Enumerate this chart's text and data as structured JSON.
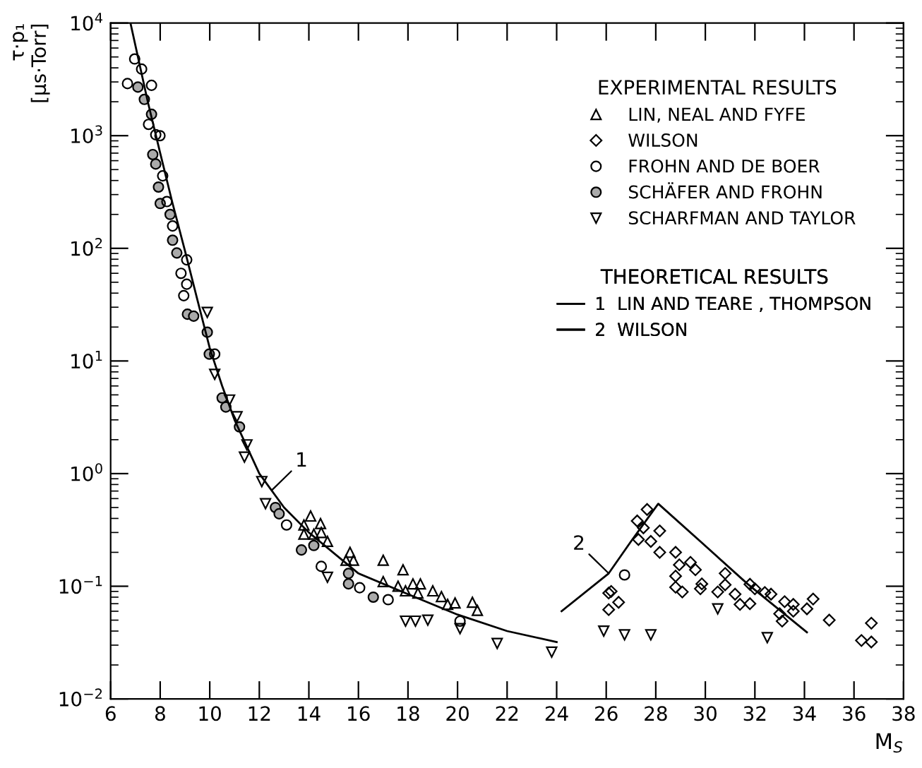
{
  "chart_data": {
    "type": "scatter",
    "xlabel": "M$_{S}$",
    "ylabel": "τ·p₁\n[µs·Torr]",
    "legend_title": "EXPERIMENTAL RESULTS",
    "log": "y",
    "legend": "top right",
    "xlim": [
      6,
      38
    ],
    "xticks": [
      6,
      8,
      10,
      12,
      14,
      16,
      18,
      20,
      22,
      24,
      26,
      28,
      30,
      32,
      34,
      36,
      38
    ],
    "ylim": [
      0.01,
      10000
    ],
    "yticks": [
      {
        "value": 0.01,
        "label": "10$^{−2}$"
      },
      {
        "value": 0.1,
        "label": "10$^{−1}$"
      },
      {
        "value": 1,
        "label": "10$^{0}$"
      },
      {
        "value": 10,
        "label": "10$^{1}$"
      },
      {
        "value": 100,
        "label": "10$^{2}$"
      },
      {
        "value": 1000,
        "label": "10$^{3}$"
      },
      {
        "value": 10000,
        "label": "10$^{4}$"
      }
    ],
    "grid": false,
    "series": [
      {
        "name": "LIN, NEAL AND FYFE",
        "color": "#000000",
        "marker": "triangle",
        "x": [
          14.07,
          14.47,
          13.8,
          14.5,
          14.2,
          14.75,
          15.66,
          15.5,
          15.8,
          17.0,
          17.8,
          17.0,
          17.6,
          18.2,
          18.5,
          17.9,
          18.4,
          19.0,
          19.35,
          19.9,
          20.6,
          20.8,
          19.6,
          13.8
        ],
        "values": [
          0.42,
          0.36,
          0.35,
          0.3,
          0.29,
          0.25,
          0.2,
          0.17,
          0.17,
          0.17,
          0.14,
          0.11,
          0.1,
          0.105,
          0.105,
          0.091,
          0.087,
          0.091,
          0.081,
          0.071,
          0.072,
          0.061,
          0.069,
          0.29
        ]
      },
      {
        "name": "WILSON",
        "color": "#000000",
        "marker": "diamond",
        "x": [
          27.25,
          27.3,
          27.5,
          27.65,
          28.16,
          27.8,
          28.16,
          28.8,
          28.95,
          29.4,
          29.6,
          28.8,
          28.8,
          29.07,
          29.86,
          29.8,
          30.5,
          30.8,
          30.8,
          31.2,
          31.4,
          31.8,
          32.0,
          31.8,
          32.4,
          32.65,
          33.2,
          33.55,
          33.55,
          33.0,
          33.1,
          34.1,
          34.35,
          35.0,
          36.3,
          36.7,
          36.7,
          26.1,
          26.2,
          26.1,
          26.5
        ],
        "values": [
          0.38,
          0.26,
          0.33,
          0.48,
          0.31,
          0.25,
          0.2,
          0.2,
          0.155,
          0.163,
          0.14,
          0.123,
          0.098,
          0.089,
          0.105,
          0.095,
          0.089,
          0.13,
          0.103,
          0.085,
          0.069,
          0.104,
          0.095,
          0.07,
          0.088,
          0.085,
          0.073,
          0.069,
          0.06,
          0.057,
          0.049,
          0.063,
          0.077,
          0.05,
          0.033,
          0.032,
          0.047,
          0.087,
          0.09,
          0.062,
          0.072
        ]
      },
      {
        "name": "FROHN AND DE BOER",
        "color": "#000000",
        "marker": "circle",
        "x": [
          6.97,
          6.68,
          7.25,
          7.65,
          7.53,
          7.82,
          7.99,
          8.1,
          8.27,
          8.5,
          9.07,
          8.84,
          9.07,
          8.95,
          10.2,
          13.1,
          14.5,
          16.05,
          17.2,
          20.1,
          26.74
        ],
        "values": [
          4800,
          2900,
          3900,
          2800,
          1260,
          1020,
          1000,
          440,
          260,
          158,
          79,
          60,
          48,
          38,
          11.5,
          0.35,
          0.15,
          0.097,
          0.076,
          0.049,
          0.126
        ]
      },
      {
        "name": "SCHÄFER AND FROHN",
        "color": "#aaaaaa",
        "marker": "circle",
        "x": [
          7.1,
          7.36,
          7.65,
          7.7,
          7.82,
          7.93,
          8.0,
          8.4,
          8.5,
          8.67,
          9.1,
          9.35,
          9.9,
          9.98,
          10.5,
          10.65,
          11.2,
          12.65,
          12.8,
          13.7,
          14.2,
          15.6,
          16.6,
          15.6
        ],
        "values": [
          2700,
          2100,
          1550,
          680,
          560,
          350,
          250,
          200,
          118,
          91,
          26,
          25,
          18,
          11.5,
          4.7,
          3.9,
          2.6,
          0.5,
          0.44,
          0.21,
          0.23,
          0.105,
          0.08,
          0.13
        ]
      },
      {
        "name": "SCHARFMAN AND TAYLOR",
        "color": "#000000",
        "marker": "triangle_down",
        "x": [
          9.9,
          10.2,
          10.8,
          11.1,
          11.5,
          11.4,
          12.1,
          12.25,
          14.75,
          17.9,
          18.3,
          18.8,
          20.1,
          21.6,
          23.8,
          25.9,
          26.74,
          27.8,
          30.5,
          32.5
        ],
        "values": [
          27,
          7.6,
          4.5,
          3.2,
          1.8,
          1.4,
          0.85,
          0.54,
          0.12,
          0.049,
          0.049,
          0.05,
          0.042,
          0.031,
          0.026,
          0.04,
          0.037,
          0.037,
          0.063,
          0.035
        ]
      },
      {
        "name": "1  LIN AND TEARE , THOMPSON",
        "type": "line",
        "color": "#000000",
        "x": [
          6.8,
          7.5,
          8,
          8.5,
          9,
          9.5,
          10,
          10.5,
          11,
          12,
          13,
          14,
          16,
          18,
          20,
          22,
          24
        ],
        "values": [
          10000,
          2000,
          700,
          250,
          95,
          35,
          13,
          6,
          3,
          1.0,
          0.5,
          0.3,
          0.13,
          0.085,
          0.056,
          0.04,
          0.032
        ]
      },
      {
        "name": "2  WILSON",
        "type": "line",
        "color": "#000000",
        "x": [
          24.2,
          26.1,
          27.0,
          28.1,
          29.8,
          31.7,
          34.1
        ],
        "values": [
          0.06,
          0.13,
          0.25,
          0.54,
          0.25,
          0.105,
          0.039
        ]
      }
    ],
    "annotations": [
      "THEORETICAL RESULTS",
      {
        "text": "1",
        "x": 12.5,
        "y": 0.71
      },
      {
        "text": "2",
        "x": 26.1,
        "y": 0.13
      }
    ]
  }
}
